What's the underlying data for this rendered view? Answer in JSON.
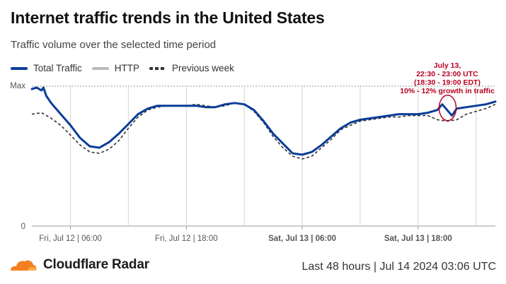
{
  "header": {
    "title": "Internet traffic trends in the United States",
    "subtitle": "Traffic volume over the selected time period"
  },
  "legend": {
    "items": [
      {
        "label": "Total Traffic",
        "color": "#0a3d99",
        "style": "solid-thick"
      },
      {
        "label": "HTTP",
        "color": "#b9b9b9",
        "style": "solid-thick"
      },
      {
        "label": "Previous week",
        "color": "#333333",
        "style": "dashed"
      }
    ]
  },
  "annotation": {
    "lines": [
      "July 13,",
      "22:30 - 23:00 UTC",
      "(18:30 - 19:00 EDT)",
      "10% - 12% growth in traffic"
    ],
    "color": "#b8001f"
  },
  "footer": {
    "brand": "Cloudflare Radar",
    "brand_color": "#f38020",
    "range_text": "Last 48 hours | Jul 14 2024 03:06 UTC"
  },
  "chart_data": {
    "type": "line",
    "title": "Internet traffic trends in the United States",
    "subtitle": "Traffic volume over the selected time period",
    "xlabel": "",
    "ylabel": "",
    "y_tick_labels": [
      "0",
      "Max"
    ],
    "ylim": [
      0,
      1
    ],
    "x_tick_labels": [
      {
        "label": "Fri, Jul 12 | 06:00",
        "bold": false
      },
      {
        "label": "Fri, Jul 12 | 18:00",
        "bold": false
      },
      {
        "label": "Sat, Jul 13 | 06:00",
        "bold": true
      },
      {
        "label": "Sat, Jul 13 | 18:00",
        "bold": true
      }
    ],
    "xlim_hours": [
      0,
      48
    ],
    "x_tick_hours": [
      4,
      16,
      28,
      40
    ],
    "x_grid_hours": [
      4,
      10,
      16,
      22,
      28,
      34,
      40,
      46
    ],
    "series": [
      {
        "name": "Total Traffic",
        "color": "#0a3d99",
        "x_hours": [
          0,
          0.5,
          1,
          1.2,
          1.5,
          2,
          3,
          4,
          5,
          6,
          7,
          8,
          9,
          10,
          11,
          12,
          13,
          14,
          15,
          16,
          17,
          18,
          19,
          20,
          21,
          22,
          23,
          24,
          25,
          26,
          27,
          28,
          29,
          30,
          31,
          32,
          33,
          34,
          35,
          36,
          37,
          38,
          39,
          40,
          41,
          42,
          42.5,
          43,
          43.5,
          44,
          45,
          46,
          47,
          48
        ],
        "values": [
          0.98,
          0.99,
          0.97,
          0.99,
          0.93,
          0.88,
          0.8,
          0.72,
          0.63,
          0.57,
          0.56,
          0.6,
          0.66,
          0.73,
          0.8,
          0.84,
          0.86,
          0.86,
          0.86,
          0.86,
          0.86,
          0.85,
          0.85,
          0.87,
          0.88,
          0.87,
          0.83,
          0.75,
          0.66,
          0.59,
          0.52,
          0.51,
          0.53,
          0.58,
          0.64,
          0.7,
          0.74,
          0.76,
          0.77,
          0.78,
          0.79,
          0.8,
          0.8,
          0.8,
          0.81,
          0.83,
          0.87,
          0.83,
          0.79,
          0.84,
          0.85,
          0.86,
          0.87,
          0.89
        ]
      },
      {
        "name": "Previous week",
        "color": "#333333",
        "x_hours": [
          0,
          1,
          2,
          3,
          4,
          5,
          6,
          7,
          8,
          9,
          10,
          11,
          12,
          13,
          14,
          15,
          16,
          17,
          18,
          19,
          20,
          21,
          22,
          23,
          24,
          25,
          26,
          27,
          28,
          29,
          30,
          31,
          32,
          33,
          34,
          35,
          36,
          37,
          38,
          39,
          40,
          41,
          42,
          43,
          44,
          45,
          46,
          47,
          48
        ],
        "values": [
          0.8,
          0.81,
          0.77,
          0.72,
          0.65,
          0.58,
          0.53,
          0.52,
          0.55,
          0.61,
          0.7,
          0.78,
          0.83,
          0.85,
          0.86,
          0.86,
          0.86,
          0.87,
          0.86,
          0.85,
          0.86,
          0.88,
          0.87,
          0.82,
          0.74,
          0.64,
          0.56,
          0.5,
          0.48,
          0.5,
          0.56,
          0.62,
          0.69,
          0.72,
          0.75,
          0.76,
          0.77,
          0.78,
          0.78,
          0.79,
          0.79,
          0.79,
          0.76,
          0.75,
          0.76,
          0.8,
          0.82,
          0.84,
          0.87
        ]
      }
    ],
    "highlight_hour": 43.2,
    "grid": true,
    "legend_position": "top-left"
  }
}
